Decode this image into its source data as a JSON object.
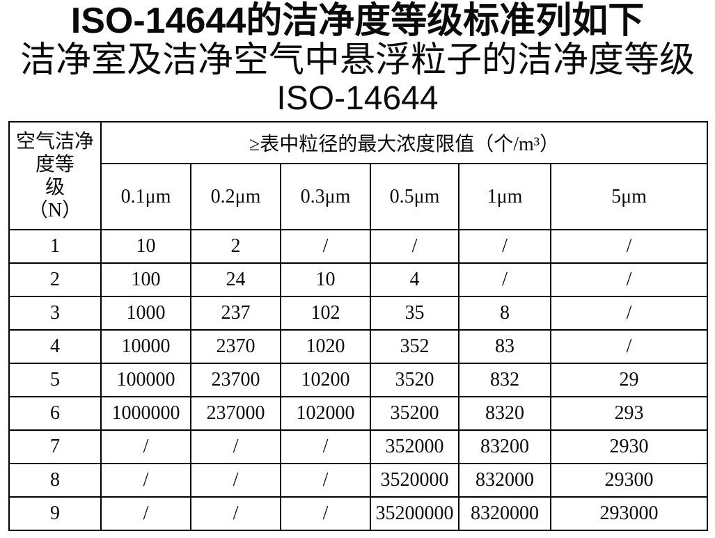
{
  "page": {
    "background": "#ffffff",
    "text_color": "#0a0a0a",
    "border_color": "#000000",
    "title_line1": "ISO-14644的洁净度等级标准列如下",
    "title_line2": "洁净室及洁净空气中悬浮粒子的洁净度等级",
    "title_line3": "ISO-14644"
  },
  "table": {
    "corner_header": "空气洁净\n度等\n级\n（N）",
    "span_header": "≥表中粒径的最大浓度限值（个/m³）",
    "col_headers": [
      "0.1μm",
      "0.2μm",
      "0.3μm",
      "0.5μm",
      "1μm",
      "5μm"
    ],
    "rows": [
      {
        "class": "1",
        "values": [
          "10",
          "2",
          "/",
          "/",
          "/",
          "/"
        ]
      },
      {
        "class": "2",
        "values": [
          "100",
          "24",
          "10",
          "4",
          "/",
          "/"
        ]
      },
      {
        "class": "3",
        "values": [
          "1000",
          "237",
          "102",
          "35",
          "8",
          "/"
        ]
      },
      {
        "class": "4",
        "values": [
          "10000",
          "2370",
          "1020",
          "352",
          "83",
          "/"
        ]
      },
      {
        "class": "5",
        "values": [
          "100000",
          "23700",
          "10200",
          "3520",
          "832",
          "29"
        ]
      },
      {
        "class": "6",
        "values": [
          "1000000",
          "237000",
          "102000",
          "35200",
          "8320",
          "293"
        ]
      },
      {
        "class": "7",
        "values": [
          "/",
          "/",
          "/",
          "352000",
          "83200",
          "2930"
        ]
      },
      {
        "class": "8",
        "values": [
          "/",
          "/",
          "/",
          "3520000",
          "832000",
          "29300"
        ]
      },
      {
        "class": "9",
        "values": [
          "/",
          "/",
          "/",
          "35200000",
          "8320000",
          "293000"
        ]
      }
    ]
  }
}
